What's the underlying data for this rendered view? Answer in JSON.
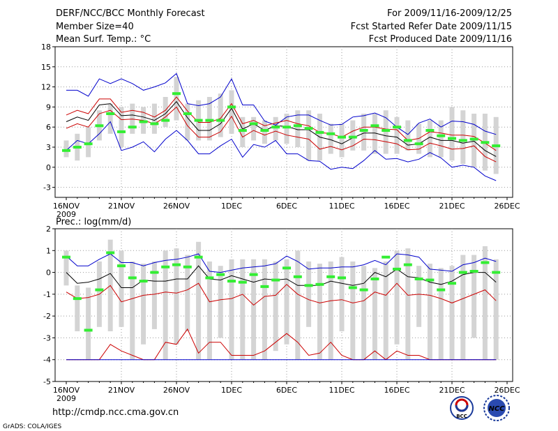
{
  "header": {
    "title": "DERF/NCC/BCC Monthly Forecast",
    "member_size": "Member Size=40",
    "variable": "Mean Surf. Temp.: °C",
    "period": "For 2009/11/16-2009/12/25",
    "fcst_started": "Fcst Started Refer Date 2009/11/15",
    "fcst_produced": "Fcst Produced Date 2009/11/16"
  },
  "footer": {
    "url": "http://cmdp.ncc.cma.gov.cn",
    "credit": "GrADS: COLA/IGES",
    "logo_left_text": "BCC",
    "logo_right_text": "NCC"
  },
  "colors": {
    "blue": "#0000cc",
    "red": "#cc0000",
    "black": "#000000",
    "green": "#33ee33",
    "gray": "#d4d4d4",
    "grid": "#999999"
  },
  "chart_data": [
    {
      "type": "line",
      "title": "Mean Surf. Temp.: °C",
      "x_tick_labels": [
        "16NOV",
        "21NOV",
        "26NOV",
        "1DEC",
        "6DEC",
        "11DEC",
        "16DEC",
        "21DEC",
        "26DEC"
      ],
      "x_tick_days": [
        0,
        5,
        10,
        15,
        20,
        25,
        30,
        35,
        40
      ],
      "year_label": "2009",
      "ylim": [
        -4.5,
        18
      ],
      "yticks": [
        -3,
        0,
        3,
        6,
        9,
        12,
        15,
        18
      ],
      "days": [
        0,
        1,
        2,
        3,
        4,
        5,
        6,
        7,
        8,
        9,
        10,
        11,
        12,
        13,
        14,
        15,
        16,
        17,
        18,
        19,
        20,
        21,
        22,
        23,
        24,
        25,
        26,
        27,
        28,
        29,
        30,
        31,
        32,
        33,
        34,
        35,
        36,
        37,
        38,
        39
      ],
      "boxes_low": [
        1.5,
        1,
        1.5,
        4,
        5,
        3,
        5,
        5,
        5,
        6,
        7,
        4,
        4,
        4,
        4.5,
        5,
        3,
        4,
        3.5,
        4,
        3.5,
        3,
        1,
        1,
        2,
        1.5,
        2.5,
        2.5,
        2,
        2,
        2,
        2.5,
        2,
        1.5,
        1.5,
        1,
        0.5,
        0,
        -0.5,
        -1
      ],
      "boxes_high": [
        4,
        5,
        6,
        8.5,
        9.5,
        9,
        9.5,
        9,
        9.5,
        10.5,
        13.5,
        9.5,
        10,
        10.5,
        11,
        11.5,
        7.5,
        7.5,
        7,
        7.5,
        8,
        8.5,
        8.5,
        8,
        6.5,
        6.5,
        7,
        8,
        8,
        8.5,
        7.5,
        7,
        6.5,
        7,
        7,
        9,
        8.5,
        8,
        8,
        7.5
      ],
      "series": [
        {
          "name": "max",
          "color": "blue",
          "values": [
            11.5,
            11.5,
            10.6,
            13.2,
            12.5,
            13.2,
            12.5,
            11.5,
            12.0,
            12.6,
            14.0,
            9.5,
            9.2,
            9.5,
            10.5,
            13.2,
            9.3,
            9.3,
            6.9,
            6.3,
            7.5,
            7.8,
            7.8,
            7.0,
            6.3,
            6.4,
            7.5,
            7.7,
            8.1,
            7.4,
            6.0,
            4.9,
            6.6,
            7.2,
            6.0,
            6.9,
            6.8,
            6.4,
            5.4,
            4.9
          ]
        },
        {
          "name": "upper",
          "color": "red",
          "values": [
            7.8,
            8.5,
            8.0,
            10.2,
            10.2,
            8.2,
            8.5,
            8.2,
            7.5,
            8.5,
            10.5,
            8.4,
            6.7,
            6.7,
            7.3,
            9.5,
            6.5,
            7.0,
            6.2,
            6.6,
            7.0,
            6.5,
            6.2,
            5.2,
            5.0,
            4.5,
            5.4,
            6.0,
            6.0,
            5.7,
            5.6,
            4.0,
            4.3,
            5.3,
            5.1,
            4.8,
            4.8,
            4.6,
            3.6,
            2.5
          ]
        },
        {
          "name": "mean",
          "color": "black",
          "values": [
            6.8,
            7.5,
            7.0,
            9.3,
            9.5,
            7.7,
            7.8,
            7.5,
            7.0,
            8.0,
            9.8,
            7.4,
            5.5,
            5.5,
            6.5,
            8.8,
            5.7,
            6.5,
            5.5,
            6.2,
            6.1,
            5.6,
            5.6,
            4.5,
            4.1,
            3.5,
            4.4,
            5.1,
            5.1,
            4.7,
            4.5,
            3.3,
            3.5,
            4.5,
            4.0,
            4.0,
            3.6,
            3.9,
            2.5,
            1.6
          ]
        },
        {
          "name": "lower",
          "color": "red",
          "values": [
            5.8,
            6.5,
            6.0,
            8.0,
            8.5,
            7.1,
            7.2,
            7.0,
            6.5,
            7.5,
            9.0,
            6.2,
            4.5,
            4.5,
            5.3,
            7.6,
            4.5,
            5.5,
            4.8,
            5.4,
            4.8,
            4.5,
            4.2,
            2.7,
            3.1,
            2.6,
            3.2,
            4.2,
            4.1,
            3.8,
            3.5,
            2.6,
            2.7,
            3.6,
            3.2,
            2.7,
            2.8,
            3.2,
            1.6,
            0.8
          ]
        },
        {
          "name": "min",
          "color": "blue",
          "values": [
            2.5,
            4.0,
            3.5,
            5.0,
            6.8,
            2.5,
            3.0,
            3.8,
            2.3,
            4.2,
            5.5,
            4.0,
            2.0,
            2.0,
            3.2,
            4.2,
            1.5,
            3.4,
            3.0,
            4.0,
            2.0,
            2.0,
            1.0,
            0.9,
            -0.3,
            0.0,
            -0.2,
            1.0,
            2.5,
            1.2,
            1.3,
            0.8,
            1.2,
            2.2,
            1.4,
            0.0,
            0.3,
            0.0,
            -1.3,
            -2.0
          ]
        }
      ],
      "observed": [
        2.5,
        3.0,
        3.5,
        6.2,
        8.0,
        5.3,
        6.0,
        6.8,
        6.5,
        7.0,
        11.0,
        8.0,
        7.0,
        7.0,
        7.0,
        9.0,
        5.5,
        6.5,
        5.5,
        6.0,
        6.0,
        6.2,
        5.8,
        5.2,
        5.0,
        4.5,
        4.5,
        5.5,
        6.2,
        5.5,
        6.0,
        4.0,
        3.5,
        5.5,
        4.7,
        4.3,
        4.0,
        4.2,
        3.7,
        3.2
      ]
    },
    {
      "type": "line",
      "title": "Prec.: log(mm/d)",
      "x_tick_labels": [
        "16NOV",
        "21NOV",
        "26NOV",
        "1DEC",
        "6DEC",
        "11DEC",
        "16DEC",
        "21DEC",
        "26DEC"
      ],
      "x_tick_days": [
        0,
        5,
        10,
        15,
        20,
        25,
        30,
        35,
        40
      ],
      "year_label": "2009",
      "ylim": [
        -5,
        2
      ],
      "yticks": [
        -5,
        -4,
        -3,
        -2,
        -1,
        0,
        1,
        2
      ],
      "days": [
        0,
        1,
        2,
        3,
        4,
        5,
        6,
        7,
        8,
        9,
        10,
        11,
        12,
        13,
        14,
        15,
        16,
        17,
        18,
        19,
        20,
        21,
        22,
        23,
        24,
        25,
        26,
        27,
        28,
        29,
        30,
        31,
        32,
        33,
        34,
        35,
        36,
        37,
        38,
        39
      ],
      "boxes_low": [
        -0.6,
        -2.7,
        -4,
        -2.5,
        -2.7,
        -2.5,
        -4,
        -3.3,
        -2.6,
        -4,
        -3.3,
        -2.7,
        -4,
        -4,
        -3,
        -4,
        -4,
        -4,
        -4,
        -3.6,
        -3.3,
        -4,
        -2.5,
        -4,
        -4,
        -2.7,
        -4,
        -4,
        -4,
        -4,
        -3.3,
        -4,
        -2.5,
        -4,
        -4,
        -4,
        -4,
        -3,
        -4,
        -4
      ],
      "boxes_high": [
        1.0,
        -0.6,
        -0.7,
        0.5,
        1.5,
        1.0,
        0.5,
        0.4,
        0.5,
        1.0,
        1.1,
        0.8,
        1.4,
        0.5,
        0.3,
        0.6,
        0.6,
        0.6,
        0.6,
        0.5,
        0.6,
        1.0,
        0.5,
        0.4,
        0.5,
        0.7,
        0.5,
        0.3,
        0.2,
        0.5,
        1.0,
        1.1,
        0.3,
        0.4,
        0.2,
        0.3,
        0.8,
        0.8,
        1.2,
        0.6
      ],
      "series": [
        {
          "name": "max",
          "color": "blue",
          "values": [
            0.75,
            0.3,
            0.3,
            0.6,
            0.85,
            0.45,
            0.45,
            0.3,
            0.45,
            0.55,
            0.6,
            0.7,
            0.85,
            0.05,
            0.0,
            0.1,
            0.2,
            0.25,
            0.3,
            0.4,
            0.75,
            0.5,
            0.15,
            0.2,
            0.2,
            0.25,
            0.25,
            0.35,
            0.55,
            0.35,
            0.85,
            0.8,
            0.7,
            0.15,
            0.1,
            0.05,
            0.35,
            0.45,
            0.65,
            0.5
          ]
        },
        {
          "name": "upper",
          "color": "black",
          "values": [
            0.0,
            -0.5,
            -0.45,
            -0.3,
            -0.05,
            -0.7,
            -0.7,
            -0.35,
            -0.4,
            -0.4,
            -0.3,
            -0.3,
            0.3,
            -0.3,
            -0.35,
            -0.15,
            -0.3,
            -0.45,
            -0.3,
            -0.35,
            -0.3,
            -0.6,
            -0.6,
            -0.6,
            -0.4,
            -0.5,
            -0.6,
            -0.5,
            0.0,
            -0.2,
            0.15,
            -0.2,
            -0.25,
            -0.45,
            -0.55,
            -0.4,
            -0.1,
            0.0,
            0.0,
            -0.45
          ]
        },
        {
          "name": "mean",
          "color": "red",
          "values": [
            -0.9,
            -1.2,
            -1.15,
            -1.0,
            -0.6,
            -1.35,
            -1.2,
            -1.05,
            -1.0,
            -0.9,
            -0.95,
            -0.8,
            -0.5,
            -1.35,
            -1.25,
            -1.2,
            -1.0,
            -1.5,
            -1.1,
            -1.05,
            -0.55,
            -1.0,
            -1.25,
            -1.4,
            -1.3,
            -1.25,
            -1.4,
            -1.3,
            -0.9,
            -1.05,
            -0.5,
            -1.05,
            -1.0,
            -1.05,
            -1.2,
            -1.4,
            -1.2,
            -1.0,
            -0.8,
            -1.3
          ]
        },
        {
          "name": "lower",
          "color": "red",
          "values": [
            -4,
            -4,
            -4,
            -4,
            -3.3,
            -3.6,
            -3.8,
            -4,
            -4,
            -3.2,
            -3.3,
            -2.6,
            -3.7,
            -3.2,
            -3.2,
            -3.8,
            -3.8,
            -3.8,
            -3.6,
            -3.2,
            -2.8,
            -3.2,
            -3.8,
            -3.7,
            -3.2,
            -3.8,
            -4,
            -4,
            -3.6,
            -4,
            -3.6,
            -3.8,
            -3.8,
            -4,
            -4,
            -4,
            -4,
            -4,
            -4,
            -4
          ]
        },
        {
          "name": "min",
          "color": "blue",
          "values": [
            -4,
            -4,
            -4,
            -4,
            -4,
            -4,
            -4,
            -4,
            -4,
            -4,
            -4,
            -4,
            -4,
            -4,
            -4,
            -4,
            -4,
            -4,
            -4,
            -4,
            -4,
            -4,
            -4,
            -4,
            -4,
            -4,
            -4,
            -4,
            -4,
            -4,
            -4,
            -4,
            -4,
            -4,
            -4,
            -4,
            -4,
            -4,
            -4,
            -4
          ]
        }
      ],
      "observed": [
        0.7,
        -1.2,
        -2.65,
        -0.8,
        0.9,
        0.3,
        -0.25,
        -0.4,
        0.0,
        0.25,
        0.35,
        0.25,
        0.7,
        -0.25,
        -0.1,
        -0.4,
        -0.45,
        -0.1,
        -0.65,
        -0.35,
        0.2,
        -0.2,
        -0.6,
        -0.55,
        -0.2,
        -0.25,
        -0.7,
        -0.8,
        -0.3,
        0.7,
        0.15,
        0.35,
        -0.3,
        -0.35,
        -0.8,
        -0.5,
        0.0,
        0.05,
        0.45,
        0.0
      ]
    }
  ]
}
